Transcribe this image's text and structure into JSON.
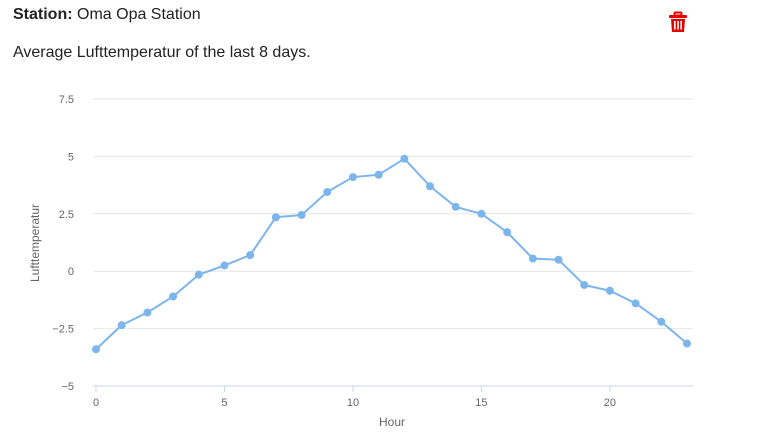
{
  "header": {
    "station_label": "Station:",
    "station_name": "Oma Opa Station"
  },
  "subtitle": "Average Lufttemperatur of the last 8 days.",
  "delete_icon": "trash-icon",
  "colors": {
    "line": "#7cb5ec",
    "delete": "#e60000",
    "grid": "#e6e6e6",
    "axis": "#ccd6eb"
  },
  "chart_data": {
    "type": "line",
    "title": "",
    "xlabel": "Hour",
    "ylabel": "Lufttemperatur",
    "x": [
      0,
      1,
      2,
      3,
      4,
      5,
      6,
      7,
      8,
      9,
      10,
      11,
      12,
      13,
      14,
      15,
      16,
      17,
      18,
      19,
      20,
      21,
      22,
      23
    ],
    "series": [
      {
        "values": [
          -3.4,
          -2.35,
          -1.8,
          -1.1,
          -0.15,
          0.25,
          0.7,
          2.35,
          2.45,
          3.45,
          4.1,
          4.2,
          4.9,
          3.7,
          2.8,
          2.5,
          1.7,
          0.55,
          0.5,
          -0.6,
          -0.85,
          -1.4,
          -2.2,
          -3.15
        ]
      }
    ],
    "xlim": [
      0,
      23
    ],
    "ylim": [
      -5,
      7.5
    ],
    "xticks": [
      "0",
      "5",
      "10",
      "15",
      "20"
    ],
    "yticks": [
      "−5",
      "−2.5",
      "0",
      "2.5",
      "5",
      "7.5"
    ],
    "grid": true,
    "legend": "none"
  }
}
